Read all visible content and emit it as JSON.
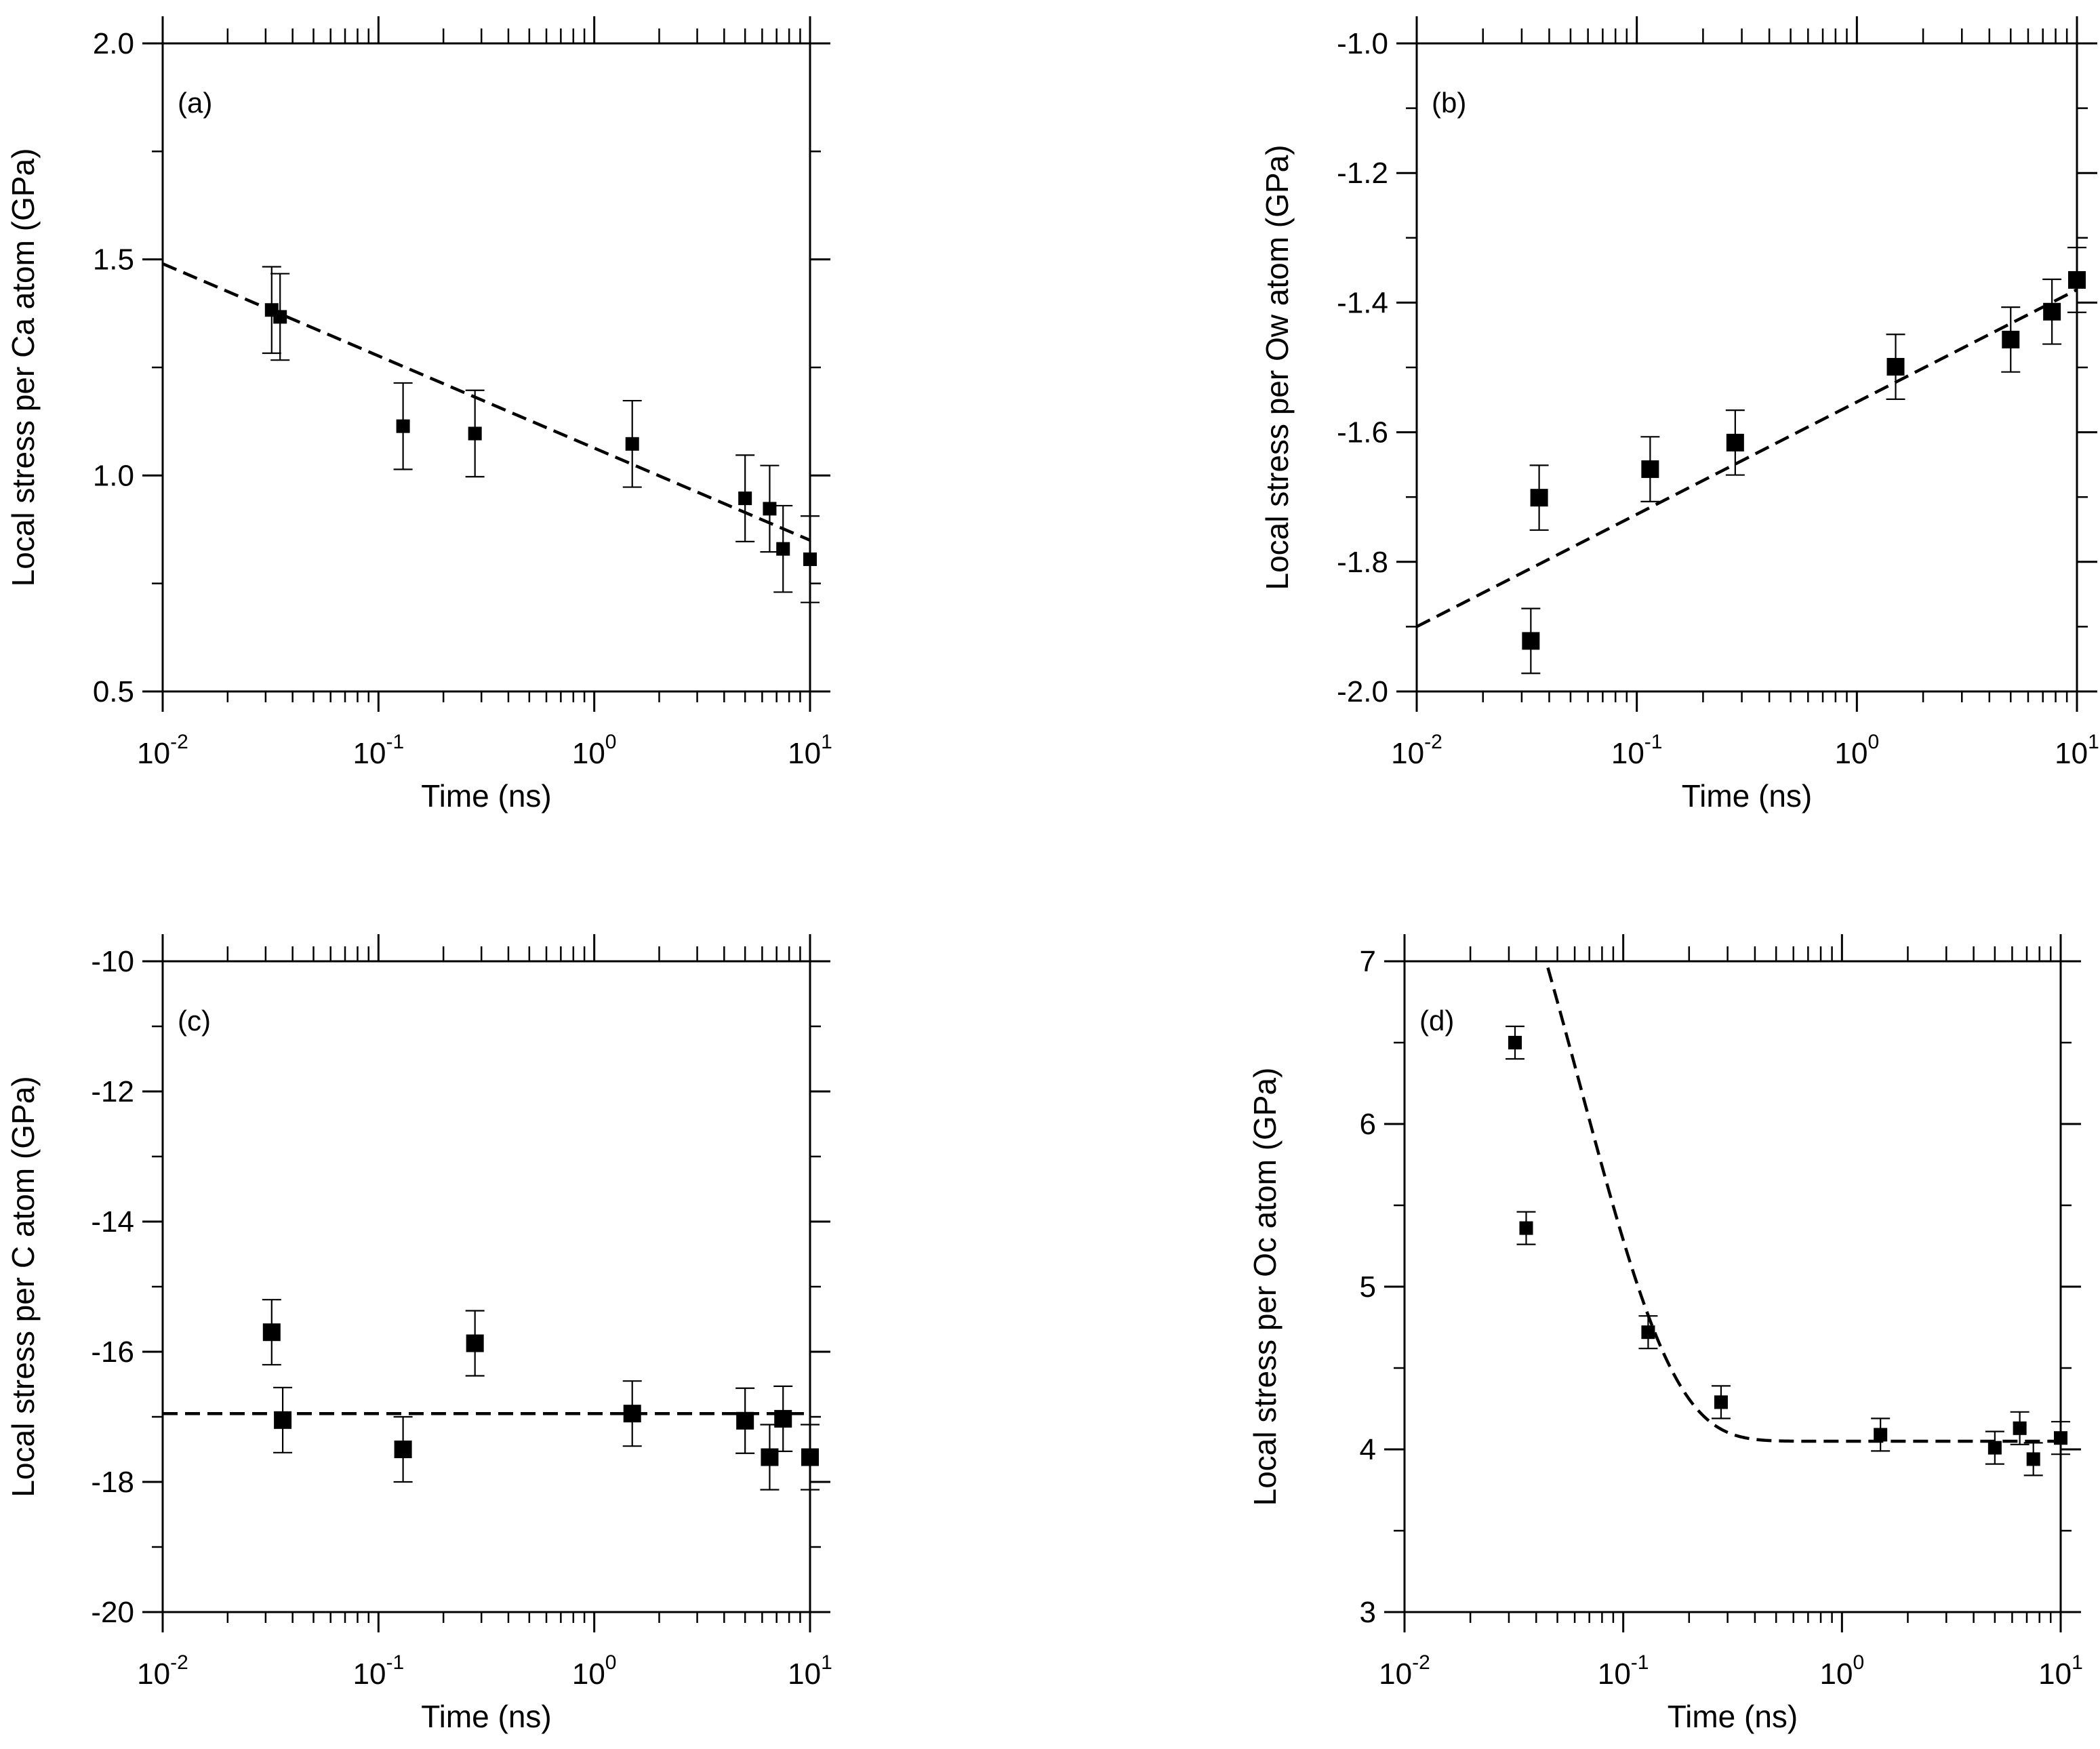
{
  "chart_data": [
    {
      "id": "a",
      "type": "scatter",
      "panel_label": "(a)",
      "xlabel": "Time (ns)",
      "ylabel": "Local stress per Ca atom (GPa)",
      "xscale": "log",
      "xlim": [
        0.01,
        10
      ],
      "ylim": [
        0.5,
        2.0
      ],
      "yticks": [
        0.5,
        1.0,
        1.5,
        2.0
      ],
      "ytick_labels": [
        "0.5",
        "1.0",
        "1.5",
        "2.0"
      ],
      "xtick_labels": [
        {
          "base": "10",
          "exp": "-2"
        },
        {
          "base": "10",
          "exp": "-1"
        },
        {
          "base": "10",
          "exp": "0"
        },
        {
          "base": "10",
          "exp": "1"
        }
      ],
      "marker_size": "small",
      "points": [
        {
          "x": 0.032,
          "y": 1.383,
          "err": 0.1
        },
        {
          "x": 0.035,
          "y": 1.367,
          "err": 0.1
        },
        {
          "x": 0.13,
          "y": 1.114,
          "err": 0.1
        },
        {
          "x": 0.28,
          "y": 1.097,
          "err": 0.1
        },
        {
          "x": 1.5,
          "y": 1.073,
          "err": 0.1
        },
        {
          "x": 5.0,
          "y": 0.947,
          "err": 0.1
        },
        {
          "x": 6.5,
          "y": 0.923,
          "err": 0.1
        },
        {
          "x": 7.5,
          "y": 0.83,
          "err": 0.1
        },
        {
          "x": 10.0,
          "y": 0.806,
          "err": 0.1
        }
      ],
      "fit": {
        "kind": "loglinear",
        "x0": 0.01,
        "y0": 1.49,
        "x1": 10,
        "y1": 0.85
      },
      "fit_style": "dashed"
    },
    {
      "id": "b",
      "type": "scatter",
      "panel_label": "(b)",
      "xlabel": "Time (ns)",
      "ylabel": "Local stress per Ow atom (GPa)",
      "xscale": "log",
      "xlim": [
        0.01,
        10
      ],
      "ylim": [
        -2.0,
        -1.0
      ],
      "yticks": [
        -2.0,
        -1.8,
        -1.6,
        -1.4,
        -1.2,
        -1.0
      ],
      "ytick_labels": [
        "-2.0",
        "-1.8",
        "-1.6",
        "-1.4",
        "-1.2",
        "-1.0"
      ],
      "xtick_labels": [
        {
          "base": "10",
          "exp": "-2"
        },
        {
          "base": "10",
          "exp": "-1"
        },
        {
          "base": "10",
          "exp": "0"
        },
        {
          "base": "10",
          "exp": "1"
        }
      ],
      "marker_size": "large",
      "points": [
        {
          "x": 0.033,
          "y": -1.922,
          "err": 0.05
        },
        {
          "x": 0.036,
          "y": -1.701,
          "err": 0.05
        },
        {
          "x": 0.115,
          "y": -1.657,
          "err": 0.05
        },
        {
          "x": 0.28,
          "y": -1.616,
          "err": 0.05
        },
        {
          "x": 1.5,
          "y": -1.499,
          "err": 0.05
        },
        {
          "x": 5.0,
          "y": -1.457,
          "err": 0.05
        },
        {
          "x": 7.7,
          "y": -1.414,
          "err": 0.05
        },
        {
          "x": 10.0,
          "y": -1.365,
          "err": 0.05
        }
      ],
      "fit": {
        "kind": "loglinear",
        "x0": 0.01,
        "y0": -1.9,
        "x1": 10,
        "y1": -1.38
      },
      "fit_style": "dashed"
    },
    {
      "id": "c",
      "type": "scatter",
      "panel_label": "(c)",
      "xlabel": "Time (ns)",
      "ylabel": "Local stress per C atom (GPa)",
      "xscale": "log",
      "xlim": [
        0.01,
        10
      ],
      "ylim": [
        -20,
        -10
      ],
      "yticks": [
        -20,
        -18,
        -16,
        -14,
        -12,
        -10
      ],
      "ytick_labels": [
        "-20",
        "-18",
        "-16",
        "-14",
        "-12",
        "-10"
      ],
      "xtick_labels": [
        {
          "base": "10",
          "exp": "-2"
        },
        {
          "base": "10",
          "exp": "-1"
        },
        {
          "base": "10",
          "exp": "0"
        },
        {
          "base": "10",
          "exp": "1"
        }
      ],
      "marker_size": "large",
      "points": [
        {
          "x": 0.032,
          "y": -15.7,
          "err": 0.5
        },
        {
          "x": 0.036,
          "y": -17.05,
          "err": 0.5
        },
        {
          "x": 0.13,
          "y": -17.5,
          "err": 0.5
        },
        {
          "x": 0.28,
          "y": -15.87,
          "err": 0.5
        },
        {
          "x": 1.5,
          "y": -16.95,
          "err": 0.5
        },
        {
          "x": 5.0,
          "y": -17.06,
          "err": 0.5
        },
        {
          "x": 6.5,
          "y": -17.62,
          "err": 0.5
        },
        {
          "x": 7.5,
          "y": -17.03,
          "err": 0.5
        },
        {
          "x": 10.0,
          "y": -17.62,
          "err": 0.5
        }
      ],
      "fit": {
        "kind": "constant",
        "y0": -16.95
      },
      "fit_style": "dashed"
    },
    {
      "id": "d",
      "type": "scatter",
      "panel_label": "(d)",
      "xlabel": "Time (ns)",
      "ylabel": "Local stress per Oc atom (GPa)",
      "xscale": "log",
      "xlim": [
        0.01,
        10
      ],
      "ylim": [
        3,
        7
      ],
      "yticks": [
        3,
        4,
        5,
        6,
        7
      ],
      "ytick_labels": [
        "3",
        "4",
        "5",
        "6",
        "7"
      ],
      "xtick_labels": [
        {
          "base": "10",
          "exp": "-2"
        },
        {
          "base": "10",
          "exp": "-1"
        },
        {
          "base": "10",
          "exp": "0"
        },
        {
          "base": "10",
          "exp": "1"
        }
      ],
      "marker_size": "small",
      "points": [
        {
          "x": 0.032,
          "y": 6.5,
          "err": 0.1
        },
        {
          "x": 0.036,
          "y": 5.36,
          "err": 0.1
        },
        {
          "x": 0.13,
          "y": 4.72,
          "err": 0.1
        },
        {
          "x": 0.28,
          "y": 4.29,
          "err": 0.1
        },
        {
          "x": 1.5,
          "y": 4.09,
          "err": 0.1
        },
        {
          "x": 5.0,
          "y": 4.01,
          "err": 0.1
        },
        {
          "x": 6.5,
          "y": 4.13,
          "err": 0.1
        },
        {
          "x": 7.5,
          "y": 3.94,
          "err": 0.1
        },
        {
          "x": 10.0,
          "y": 4.07,
          "err": 0.1
        }
      ],
      "fit": {
        "kind": "exp_decay",
        "a": 4.05,
        "b": 5.9,
        "tau": 0.064,
        "x_start": 0.0235
      },
      "fit_style": "dashed"
    }
  ]
}
